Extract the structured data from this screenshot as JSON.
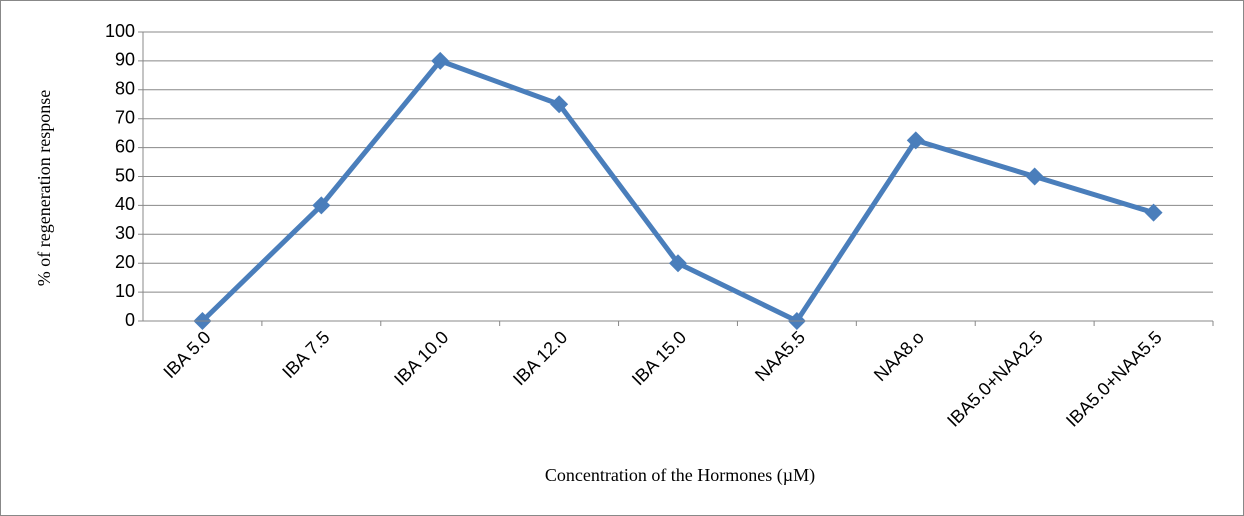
{
  "chart_data": {
    "type": "line",
    "x_label": "Concentration of the Hormones (µM)",
    "y_label": "% of regeneration response",
    "categories": [
      "IBA 5.0",
      "IBA 7.5",
      "IBA 10.0",
      "IBA 12.0",
      "IBA 15.0",
      "NAA5.5",
      "NAA8.o",
      "IBA5.0+NAA2.5",
      "IBA5.0+NAA5.5"
    ],
    "series": [
      {
        "color": "#4a7ebb",
        "values": [
          0,
          40,
          90,
          75,
          20,
          0,
          62.5,
          50,
          37.5
        ]
      }
    ],
    "ylim": [
      0,
      100
    ],
    "yticks": [
      0,
      10,
      20,
      30,
      40,
      50,
      60,
      70,
      80,
      90,
      100
    ],
    "grid": true
  }
}
